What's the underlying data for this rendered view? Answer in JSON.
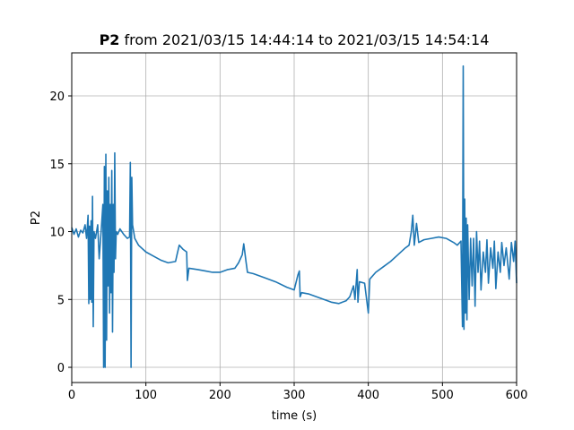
{
  "chart_data": {
    "type": "line",
    "title": {
      "bold": "P2",
      "text": "from 2021/03/15 14:44:14 to 2021/03/15 14:54:14"
    },
    "x_label": "time (s)",
    "y_label": "P2",
    "xlim": [
      0,
      600
    ],
    "ylim": [
      -1.12,
      23.17
    ],
    "xticks": [
      0,
      100,
      200,
      300,
      400,
      500,
      600
    ],
    "yticks": [
      0,
      5,
      10,
      15,
      20
    ],
    "grid": true,
    "x": [
      0,
      3,
      6,
      9,
      12,
      15,
      18,
      20,
      22,
      23,
      24,
      25,
      26,
      27,
      28,
      29,
      30,
      32,
      35,
      37,
      40,
      42,
      43,
      44,
      45,
      46,
      47,
      48,
      49,
      50,
      51,
      52,
      53,
      54,
      55,
      56,
      57,
      58,
      59,
      60,
      62,
      65,
      70,
      75,
      78,
      79,
      80,
      81,
      82,
      85,
      90,
      100,
      110,
      120,
      130,
      140,
      142,
      145,
      150,
      155,
      156,
      158,
      170,
      180,
      190,
      200,
      210,
      220,
      225,
      230,
      232,
      235,
      237,
      245,
      260,
      275,
      290,
      300,
      305,
      307,
      308,
      310,
      320,
      330,
      340,
      350,
      360,
      370,
      375,
      380,
      382,
      385,
      386,
      388,
      395,
      400,
      402,
      410,
      420,
      430,
      440,
      450,
      455,
      458,
      460,
      462,
      465,
      468,
      475,
      485,
      495,
      505,
      515,
      520,
      525,
      527,
      528,
      529,
      530,
      531,
      532,
      533,
      534,
      536,
      538,
      540,
      542,
      544,
      546,
      548,
      550,
      552,
      555,
      558,
      560,
      562,
      565,
      568,
      570,
      572,
      575,
      578,
      580,
      583,
      586,
      590,
      593,
      596,
      598,
      600
    ],
    "series": [
      {
        "name": "P2",
        "color": "#1f77b4",
        "values": [
          10.3,
          9.8,
          10.2,
          9.6,
          10.1,
          9.9,
          10.5,
          9.5,
          11.2,
          4.7,
          10.4,
          5,
          10.8,
          4.8,
          12.6,
          3,
          10,
          9.5,
          10.5,
          8,
          10.3,
          12,
          0,
          14.8,
          0,
          15.7,
          2,
          13,
          6,
          14,
          4,
          12,
          5.5,
          14.5,
          2.6,
          12,
          7,
          15.8,
          8,
          10,
          9.8,
          10.2,
          9.8,
          9.5,
          9.6,
          15.1,
          0,
          14,
          10.5,
          9.5,
          9,
          8.5,
          8.2,
          7.9,
          7.7,
          7.8,
          8.3,
          9,
          8.7,
          8.5,
          6.4,
          7.3,
          7.2,
          7.1,
          7,
          7,
          7.2,
          7.3,
          7.7,
          8.3,
          9.1,
          7.8,
          7,
          6.9,
          6.6,
          6.3,
          5.9,
          5.7,
          6.8,
          7.1,
          5.2,
          5.5,
          5.4,
          5.2,
          5,
          4.8,
          4.7,
          4.9,
          5.2,
          6,
          5,
          7.2,
          4.8,
          6.3,
          6.2,
          4,
          6.5,
          7,
          7.4,
          7.8,
          8.3,
          8.8,
          9,
          10,
          11.2,
          9,
          10.6,
          9.2,
          9.4,
          9.5,
          9.6,
          9.5,
          9.2,
          9,
          9.3,
          3,
          22.2,
          2.8,
          12.4,
          4,
          11,
          3.5,
          10.5,
          5,
          9.5,
          6,
          9.5,
          4.5,
          10,
          7,
          9.3,
          5.7,
          8.5,
          7,
          9.4,
          6.2,
          8.8,
          7.3,
          9.3,
          5.8,
          8.5,
          7,
          9.2,
          7.5,
          8.8,
          6.5,
          9.2,
          7.8,
          9.3,
          6.2
        ]
      }
    ]
  }
}
